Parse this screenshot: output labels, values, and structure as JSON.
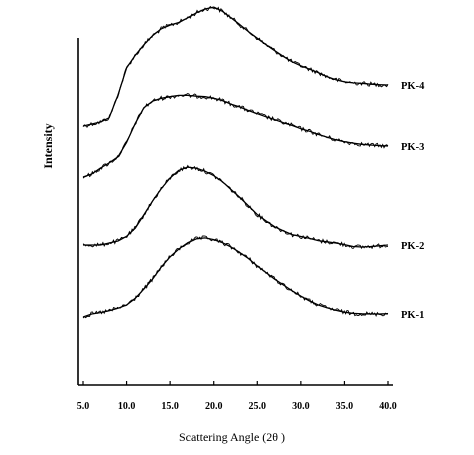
{
  "chart_data": {
    "type": "line",
    "title": "",
    "xlabel": "Scattering Angle (2θ )",
    "ylabel": "Intensity",
    "xlim": [
      5.0,
      40.0
    ],
    "x_ticks": [
      "5.0",
      "10.0",
      "15.0",
      "20.0",
      "25.0",
      "30.0",
      "35.0",
      "40.0"
    ],
    "y_units": "arbitrary (vertically offset curves, intensity increases upward)",
    "grid": false,
    "legend": "none (series labelled at right end of each curve)",
    "x": [
      5.0,
      6.0,
      7.0,
      8.0,
      9.0,
      10.0,
      11.0,
      12.0,
      13.0,
      14.0,
      15.0,
      16.0,
      17.0,
      18.0,
      19.0,
      20.0,
      21.0,
      22.0,
      23.0,
      24.0,
      25.0,
      26.0,
      27.0,
      28.0,
      29.0,
      30.0,
      31.0,
      32.0,
      33.0,
      34.0,
      35.0,
      36.0,
      37.0,
      38.0,
      39.0,
      40.0
    ],
    "series": [
      {
        "name": "PK-4",
        "values": [
          0.0,
          0.02,
          0.039,
          0.08,
          0.302,
          0.57,
          0.693,
          0.797,
          0.886,
          0.953,
          0.989,
          1.015,
          1.06,
          1.11,
          1.147,
          1.166,
          1.125,
          1.06,
          0.993,
          0.924,
          0.86,
          0.797,
          0.738,
          0.682,
          0.629,
          0.59,
          0.557,
          0.524,
          0.484,
          0.454,
          0.432,
          0.423,
          0.418,
          0.41,
          0.405,
          0.402
        ]
      },
      {
        "name": "PK-3",
        "values": [
          0.0,
          0.029,
          0.088,
          0.138,
          0.198,
          0.339,
          0.526,
          0.68,
          0.744,
          0.772,
          0.787,
          0.8,
          0.8,
          0.792,
          0.787,
          0.772,
          0.749,
          0.714,
          0.686,
          0.651,
          0.621,
          0.59,
          0.563,
          0.532,
          0.506,
          0.474,
          0.449,
          0.418,
          0.391,
          0.366,
          0.346,
          0.332,
          0.321,
          0.314,
          0.308,
          0.304
        ]
      },
      {
        "name": "PK-2",
        "values": [
          0.0,
          0.0,
          0.0,
          0.02,
          0.039,
          0.085,
          0.166,
          0.298,
          0.432,
          0.554,
          0.657,
          0.732,
          0.764,
          0.754,
          0.724,
          0.68,
          0.621,
          0.543,
          0.466,
          0.382,
          0.298,
          0.236,
          0.178,
          0.138,
          0.102,
          0.083,
          0.065,
          0.043,
          0.031,
          0.02,
          0.004,
          -0.015,
          -0.02,
          -0.015,
          -0.008,
          0.0
        ]
      },
      {
        "name": "PK-1",
        "values": [
          0.0,
          0.029,
          0.043,
          0.061,
          0.085,
          0.118,
          0.183,
          0.275,
          0.373,
          0.491,
          0.59,
          0.667,
          0.726,
          0.767,
          0.775,
          0.759,
          0.728,
          0.686,
          0.631,
          0.573,
          0.5,
          0.435,
          0.371,
          0.314,
          0.257,
          0.204,
          0.157,
          0.118,
          0.09,
          0.067,
          0.047,
          0.035,
          0.031,
          0.029,
          0.029,
          0.031
        ]
      }
    ]
  }
}
